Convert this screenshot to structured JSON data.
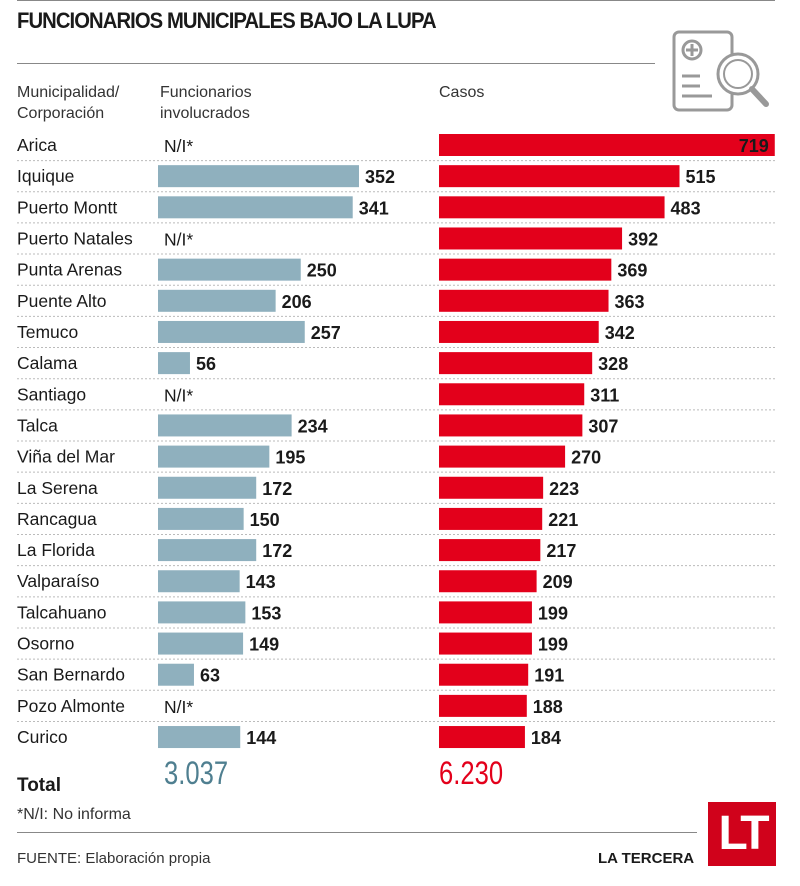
{
  "title": "FUNCIONARIOS MUNICIPALES BAJO LA LUPA",
  "headers": {
    "municipality_line1": "Municipalidad/",
    "municipality_line2": "Corporación",
    "officials_line1": "Funcionarios",
    "officials_line2": "involucrados",
    "cases": "Casos"
  },
  "colors": {
    "officials": "#8fb0be",
    "cases": "#e3001b",
    "total_officials": "#4f7f90"
  },
  "chart_data": {
    "type": "bar",
    "title": "FUNCIONARIOS MUNICIPALES BAJO LA LUPA",
    "categories": [
      "Arica",
      "Iquique",
      "Puerto Montt",
      "Puerto Natales",
      "Punta Arenas",
      "Puente Alto",
      "Temuco",
      "Calama",
      "Santiago",
      "Talca",
      "Viña del Mar",
      "La Serena",
      "Rancagua",
      "La Florida",
      "Valparaíso",
      "Talcahuano",
      "Osorno",
      "San Bernardo",
      "Pozo Almonte",
      "Curico"
    ],
    "series": [
      {
        "name": "Funcionarios involucrados",
        "values": [
          null,
          352,
          341,
          null,
          250,
          206,
          257,
          56,
          null,
          234,
          195,
          172,
          150,
          172,
          143,
          153,
          149,
          63,
          null,
          144
        ]
      },
      {
        "name": "Casos",
        "values": [
          719,
          515,
          483,
          392,
          369,
          363,
          342,
          328,
          311,
          307,
          270,
          223,
          221,
          217,
          209,
          199,
          199,
          191,
          188,
          184
        ]
      }
    ],
    "missing_label": "N/I*"
  },
  "totals": {
    "label": "Total",
    "officials": "3.037",
    "cases": "6.230"
  },
  "note": "*N/I: No informa",
  "source": "FUENTE: Elaboración propia",
  "brand": "LA TERCERA",
  "logo_text": "LT"
}
